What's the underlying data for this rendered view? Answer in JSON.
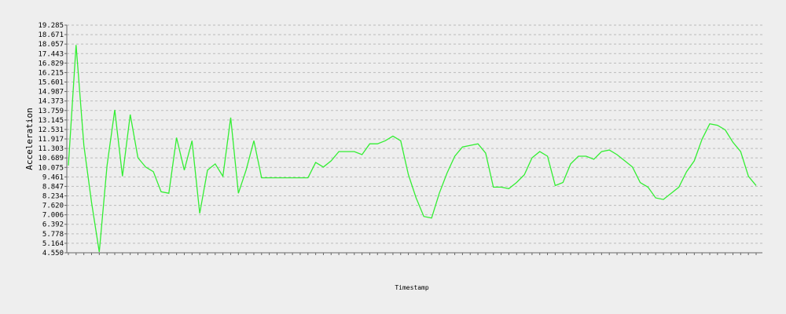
{
  "chart_data": {
    "type": "line",
    "title": "",
    "xlabel": "Timestamp",
    "ylabel": "Acceleration",
    "ylim": [
      4.55,
      19.285
    ],
    "y_ticks": [
      "4.550",
      "5.164",
      "5.778",
      "6.392",
      "7.006",
      "7.620",
      "8.234",
      "8.847",
      "9.461",
      "10.075",
      "10.689",
      "11.303",
      "11.917",
      "12.531",
      "13.145",
      "13.759",
      "14.373",
      "14.987",
      "15.601",
      "16.215",
      "16.829",
      "17.443",
      "18.057",
      "18.671",
      "19.285"
    ],
    "x_tick_labels_note": "Dense overlapping timestamp tick labels along the x-axis; individual values are not legible.",
    "grid": true,
    "line_color": "#33ee33",
    "series": [
      {
        "name": "",
        "values": [
          10.2,
          18.0,
          11.5,
          7.8,
          4.6,
          10.2,
          13.8,
          9.5,
          13.5,
          10.7,
          10.1,
          9.8,
          8.5,
          8.4,
          12.0,
          9.9,
          11.8,
          7.1,
          9.9,
          10.3,
          9.5,
          13.3,
          8.4,
          9.9,
          11.8,
          9.4,
          9.4,
          9.4,
          9.4,
          9.4,
          9.4,
          9.4,
          10.4,
          10.1,
          10.5,
          11.1,
          11.1,
          11.1,
          10.9,
          11.6,
          11.6,
          11.8,
          12.1,
          11.8,
          9.6,
          8.1,
          6.9,
          6.8,
          8.4,
          9.7,
          10.8,
          11.4,
          11.5,
          11.6,
          11.0,
          8.8,
          8.8,
          8.7,
          9.1,
          9.6,
          10.7,
          11.1,
          10.8,
          8.9,
          9.1,
          10.3,
          10.8,
          10.8,
          10.6,
          11.1,
          11.2,
          10.9,
          10.5,
          10.1,
          9.1,
          8.8,
          8.1,
          8.0,
          8.4,
          8.8,
          9.8,
          10.5,
          11.9,
          12.9,
          12.8,
          12.5,
          11.7,
          11.1,
          9.5,
          8.9
        ]
      }
    ]
  }
}
